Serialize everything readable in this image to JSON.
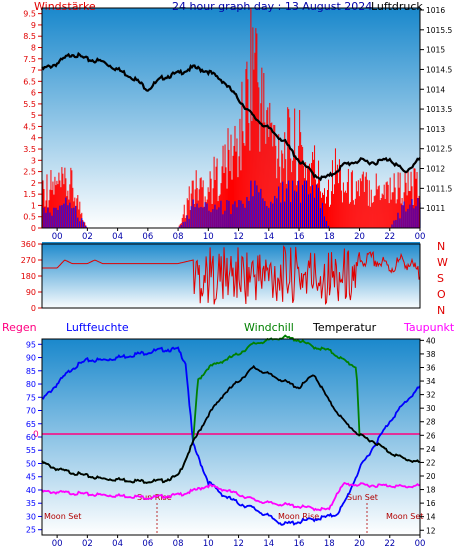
{
  "header": {
    "left_label": "Windstärke",
    "title": "24 hour graph day : 13 August 2024",
    "right_label": "Luftdruck"
  },
  "mid_header": {
    "regen": "Regen",
    "luftfeuchte": "Luftfeuchte",
    "windchill": "Windchill",
    "temperatur": "Temperatur",
    "taupunkt": "Taupunkt"
  },
  "direction_letters": [
    "N",
    "W",
    "S",
    "O",
    "N"
  ],
  "annotations": {
    "sun_rise": "Sun Rise",
    "sun_set": "Sun Set",
    "moon_set_left": "Moon Set",
    "moon_rise": "Moon Rise",
    "moon_set_right": "Moon Set",
    "rain_zero": "0"
  },
  "colors": {
    "wind_axis": "#e00000",
    "pressure_line": "#000000",
    "gust": "#ff0000",
    "avg_wind": "#0000ff",
    "direction": "#e00000",
    "humidity": "#0000ff",
    "windchill": "#008000",
    "temperature": "#000000",
    "dewpoint": "#ff00ff",
    "rain_axis": "#ff0080",
    "bg_top": "#1a88cc",
    "bg_bottom": "#ffffff"
  },
  "chart_data": [
    {
      "type": "line",
      "name": "wind-pressure",
      "x_ticks": [
        "00",
        "02",
        "04",
        "06",
        "08",
        "10",
        "12",
        "14",
        "16",
        "18",
        "20",
        "22",
        "00"
      ],
      "x_range": [
        -1,
        24
      ],
      "y_left_ticks": [
        0,
        0.5,
        1,
        1.5,
        2,
        2.5,
        3,
        3.5,
        4,
        4.5,
        5,
        5.5,
        6,
        6.5,
        7,
        7.5,
        8,
        8.5,
        9,
        9.5
      ],
      "y_left_range": [
        0,
        9.75
      ],
      "y_right_ticks": [
        1011,
        1011.5,
        1012,
        1012.5,
        1013,
        1013.5,
        1014,
        1014.5,
        1015,
        1015.5,
        1016
      ],
      "y_right_range": [
        1010.5,
        1016.05
      ],
      "series": [
        {
          "name": "Luftdruck",
          "axis": "right",
          "x": [
            -1,
            0,
            1,
            2,
            3,
            4,
            5,
            6,
            7,
            8,
            9,
            10,
            11,
            12,
            13,
            14,
            15,
            16,
            17,
            17.5,
            18,
            19,
            20,
            21,
            22,
            23,
            24
          ],
          "values": [
            1014.5,
            1014.65,
            1014.9,
            1014.75,
            1014.7,
            1014.5,
            1014.3,
            1014.0,
            1014.3,
            1014.4,
            1014.55,
            1014.45,
            1014.2,
            1013.75,
            1013.3,
            1013.0,
            1012.7,
            1012.2,
            1011.85,
            1011.75,
            1011.8,
            1012.1,
            1012.2,
            1012.15,
            1012.25,
            1011.9,
            1012.25
          ]
        },
        {
          "name": "Böen",
          "axis": "left",
          "x": [
            -1,
            0,
            1,
            2,
            3,
            4,
            5,
            6,
            7,
            8,
            9,
            10,
            11,
            11.5,
            12,
            12.5,
            13,
            13.5,
            14,
            14.5,
            15,
            15.5,
            16,
            16.5,
            17,
            17.5,
            18,
            18.5,
            19,
            20,
            21,
            22,
            23,
            24
          ],
          "values": [
            1.8,
            1.8,
            1.8,
            0,
            0,
            0,
            0,
            0,
            0,
            0,
            1.8,
            1.8,
            2.7,
            3.2,
            3.6,
            5.4,
            8.1,
            5.4,
            4.5,
            3.6,
            3.6,
            3.6,
            3.6,
            2.7,
            2.7,
            1.8,
            1.8,
            2.7,
            1.8,
            1.8,
            1.8,
            1.8,
            1.8,
            1.8
          ]
        },
        {
          "name": "Wind",
          "axis": "left",
          "x": [
            -1,
            0,
            1,
            2,
            3,
            4,
            5,
            6,
            7,
            8,
            9,
            10,
            11,
            12,
            13,
            14,
            15,
            16,
            17,
            18,
            19,
            20,
            21,
            22,
            23,
            24
          ],
          "values": [
            0.9,
            0.9,
            0.9,
            0,
            0,
            0,
            0,
            0,
            0,
            0,
            0.9,
            0.9,
            0.9,
            0.9,
            1.8,
            0.9,
            1.8,
            1.8,
            1.8,
            0,
            0,
            0,
            0,
            0,
            0.9,
            0.9
          ]
        }
      ]
    },
    {
      "type": "line",
      "name": "wind-direction",
      "x_range": [
        -1,
        24
      ],
      "y_ticks": [
        0,
        90,
        180,
        270,
        360
      ],
      "y_range": [
        0,
        360
      ],
      "series": [
        {
          "name": "Windrichtung",
          "x": [
            -1,
            0,
            0.5,
            1,
            2,
            2.5,
            3,
            4,
            5,
            6,
            7,
            8,
            9,
            10,
            11,
            12,
            13,
            14,
            15,
            16,
            17,
            18,
            19,
            20,
            21,
            22,
            23,
            24
          ],
          "values": [
            225,
            225,
            270,
            250,
            250,
            270,
            250,
            250,
            250,
            250,
            250,
            250,
            270,
            180,
            180,
            200,
            210,
            180,
            190,
            200,
            180,
            210,
            200,
            270,
            270,
            225,
            270,
            180
          ]
        }
      ]
    },
    {
      "type": "line",
      "name": "temperature-humidity",
      "x_range": [
        -1,
        24
      ],
      "y_left_ticks": [
        25,
        30,
        35,
        40,
        45,
        50,
        55,
        60,
        65,
        70,
        75,
        80,
        85,
        90,
        95
      ],
      "y_left_range": [
        23,
        97
      ],
      "y_right_ticks": [
        12,
        14,
        16,
        18,
        20,
        22,
        24,
        26,
        28,
        30,
        32,
        34,
        36,
        38,
        40
      ],
      "y_right_range": [
        11.3,
        40.2
      ],
      "series": [
        {
          "name": "Luftfeuchte",
          "axis": "left",
          "x": [
            -1,
            0,
            1,
            2,
            3,
            4,
            5,
            6,
            7,
            8,
            8.5,
            9,
            10,
            11,
            12,
            13,
            14,
            15,
            16,
            17,
            18,
            18.5,
            19,
            20,
            21,
            22,
            23,
            24
          ],
          "values": [
            74,
            80,
            86,
            89,
            89,
            90,
            91,
            92,
            93,
            93,
            88,
            57,
            43,
            38,
            35,
            33,
            30,
            27,
            28,
            29,
            30,
            31,
            35,
            48,
            57,
            66,
            73,
            79
          ]
        },
        {
          "name": "Windchill",
          "axis": "right",
          "x": [
            -1,
            0,
            1,
            2,
            3,
            4,
            5,
            6,
            7,
            8,
            9,
            9.3,
            10,
            11,
            12,
            13,
            14,
            15,
            16,
            17,
            18,
            19,
            19.8,
            20,
            21,
            22,
            23,
            24
          ],
          "values": [
            22,
            21,
            20.5,
            20,
            19.6,
            19.5,
            19.3,
            19.2,
            19.3,
            20,
            25,
            34,
            36,
            37,
            38,
            39.5,
            40,
            40.5,
            40,
            39,
            38.5,
            37,
            36,
            26,
            25,
            23.5,
            22.5,
            22
          ]
        },
        {
          "name": "Temperatur",
          "axis": "right",
          "x": [
            -1,
            0,
            1,
            2,
            3,
            4,
            5,
            6,
            7,
            8,
            9,
            10,
            11,
            12,
            13,
            14,
            15,
            16,
            17,
            18,
            19,
            20,
            21,
            22,
            23,
            24
          ],
          "values": [
            22,
            21,
            20.5,
            20,
            19.6,
            19.5,
            19.3,
            19.2,
            19.3,
            20,
            25,
            29,
            32,
            34,
            36,
            35,
            34,
            33,
            35,
            31,
            28,
            26,
            25,
            23.5,
            22.5,
            22
          ]
        },
        {
          "name": "Taupunkt",
          "axis": "right",
          "x": [
            -1,
            0,
            1,
            2,
            3,
            4,
            5,
            6,
            7,
            8,
            9,
            10,
            11,
            12,
            13,
            14,
            15,
            16,
            17,
            18,
            18.5,
            19,
            20,
            21,
            22,
            23,
            24
          ],
          "values": [
            17.7,
            17.6,
            17.5,
            17.3,
            17.2,
            17.1,
            17.0,
            16.8,
            17.0,
            17.2,
            17.8,
            18.6,
            18.0,
            17.3,
            16.5,
            16.0,
            15.8,
            15.5,
            15.2,
            15.0,
            17.5,
            18.8,
            18.7,
            18.6,
            18.6,
            18.4,
            18.6
          ]
        }
      ]
    }
  ]
}
